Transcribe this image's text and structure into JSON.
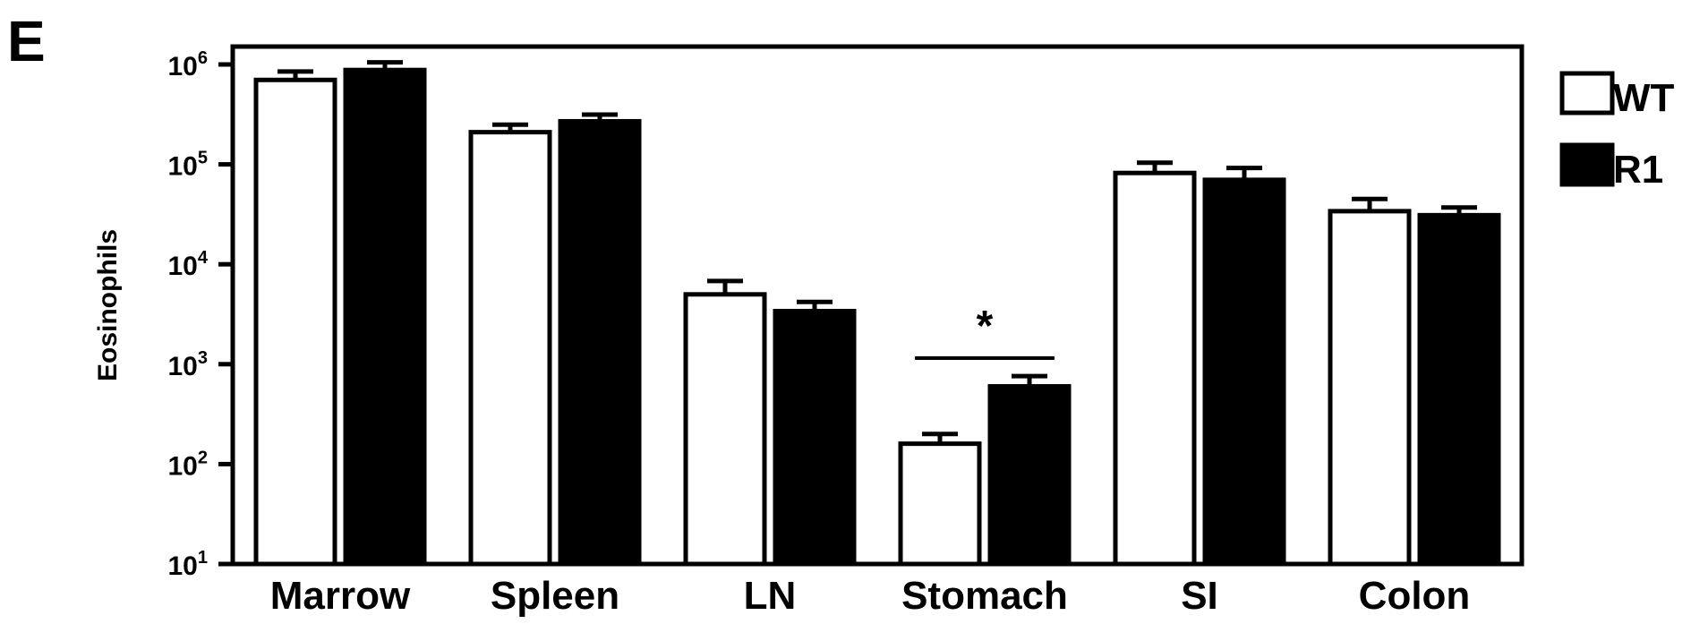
{
  "panel_label": "E",
  "chart_data": {
    "type": "bar",
    "title": "",
    "xlabel": "",
    "ylabel": "Eosinophils",
    "yscale": "log",
    "ylim": [
      10,
      1000000
    ],
    "yticks": [
      10,
      100,
      1000,
      10000,
      100000,
      1000000
    ],
    "ytick_labels": [
      {
        "base": "10",
        "exp": "1"
      },
      {
        "base": "10",
        "exp": "2"
      },
      {
        "base": "10",
        "exp": "3"
      },
      {
        "base": "10",
        "exp": "4"
      },
      {
        "base": "10",
        "exp": "5"
      },
      {
        "base": "10",
        "exp": "6"
      }
    ],
    "categories": [
      "Marrow",
      "Spleen",
      "LN",
      "Stomach",
      "SI",
      "Colon"
    ],
    "series": [
      {
        "name": "WT",
        "color": "#ffffff",
        "values": [
          700000,
          210000,
          5000,
          160,
          82000,
          34000
        ],
        "errors": [
          150000,
          40000,
          1800,
          40,
          22000,
          11000
        ]
      },
      {
        "name": "R1",
        "color": "#000000",
        "values": [
          880000,
          270000,
          3400,
          600,
          70000,
          31000
        ],
        "errors": [
          170000,
          45000,
          800,
          160,
          22000,
          6000
        ]
      }
    ],
    "legend_position": "right",
    "grid": false,
    "annotations": [
      {
        "text": "*",
        "category": "Stomach"
      }
    ]
  }
}
